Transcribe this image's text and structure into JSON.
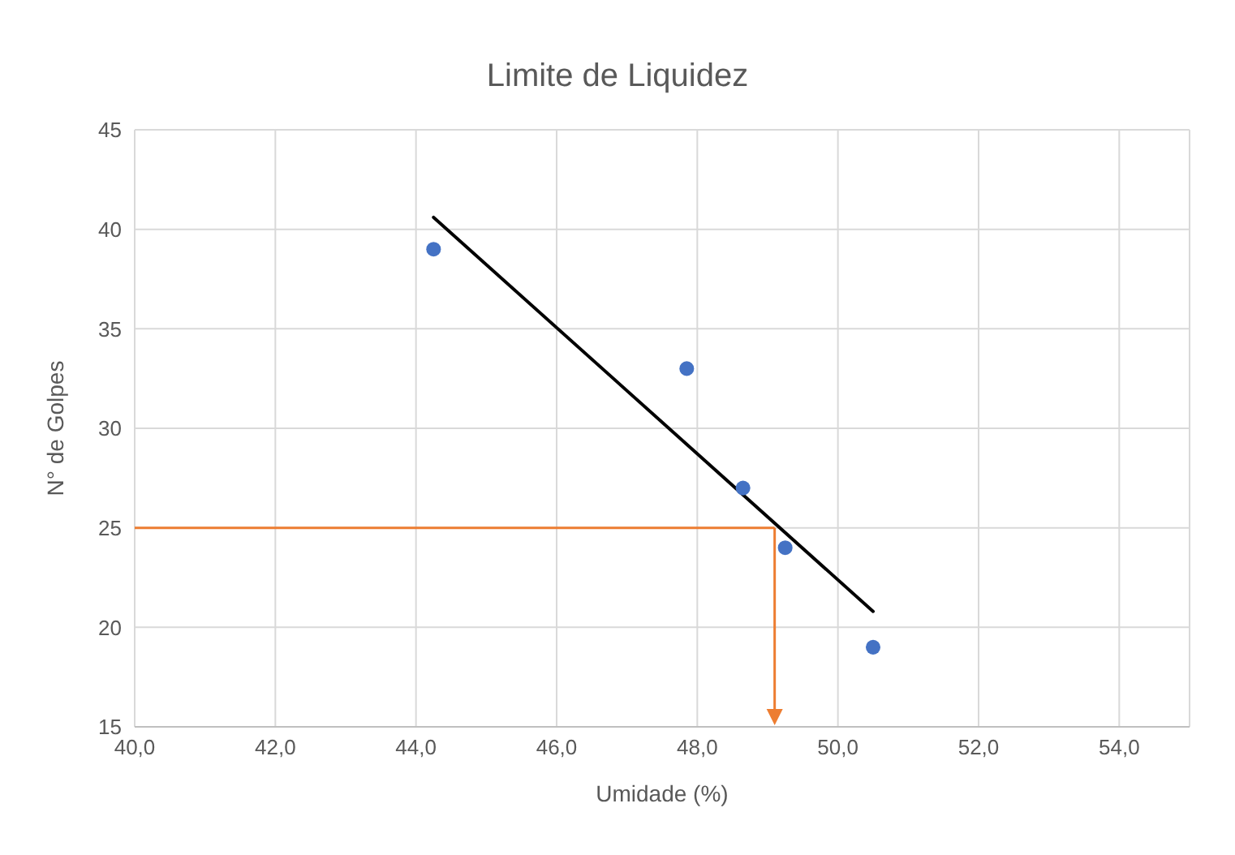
{
  "chart_data": {
    "type": "scatter",
    "title": "Limite de Liquidez",
    "xlabel": "Umidade (%)",
    "ylabel": "N° de Golpes",
    "xlim": [
      40,
      55
    ],
    "xticks": [
      {
        "value": 40,
        "label": "40,0"
      },
      {
        "value": 42,
        "label": "42,0"
      },
      {
        "value": 44,
        "label": "44,0"
      },
      {
        "value": 46,
        "label": "46,0"
      },
      {
        "value": 48,
        "label": "48,0"
      },
      {
        "value": 50,
        "label": "50,0"
      },
      {
        "value": 52,
        "label": "52,0"
      },
      {
        "value": 54,
        "label": "54,0"
      }
    ],
    "ylim": [
      15,
      45
    ],
    "yticks": [
      15,
      20,
      25,
      30,
      35,
      40,
      45
    ],
    "grid": true,
    "marker": "circle",
    "series": [
      {
        "color": "#4472c4",
        "x": [
          44.25,
          47.85,
          48.65,
          49.25,
          50.5
        ],
        "values": [
          39,
          33,
          27,
          24,
          19
        ]
      },
      {
        "type": "line",
        "color": "#000000",
        "marker": "none",
        "x": [
          44.25,
          50.5
        ],
        "values": [
          40.6,
          20.8
        ]
      }
    ],
    "ref_lines": [
      {
        "axis": "y",
        "value": 25,
        "color": "#ed7d31"
      },
      {
        "axis": "x",
        "value": 49.1,
        "color": "#ed7d31"
      }
    ]
  }
}
